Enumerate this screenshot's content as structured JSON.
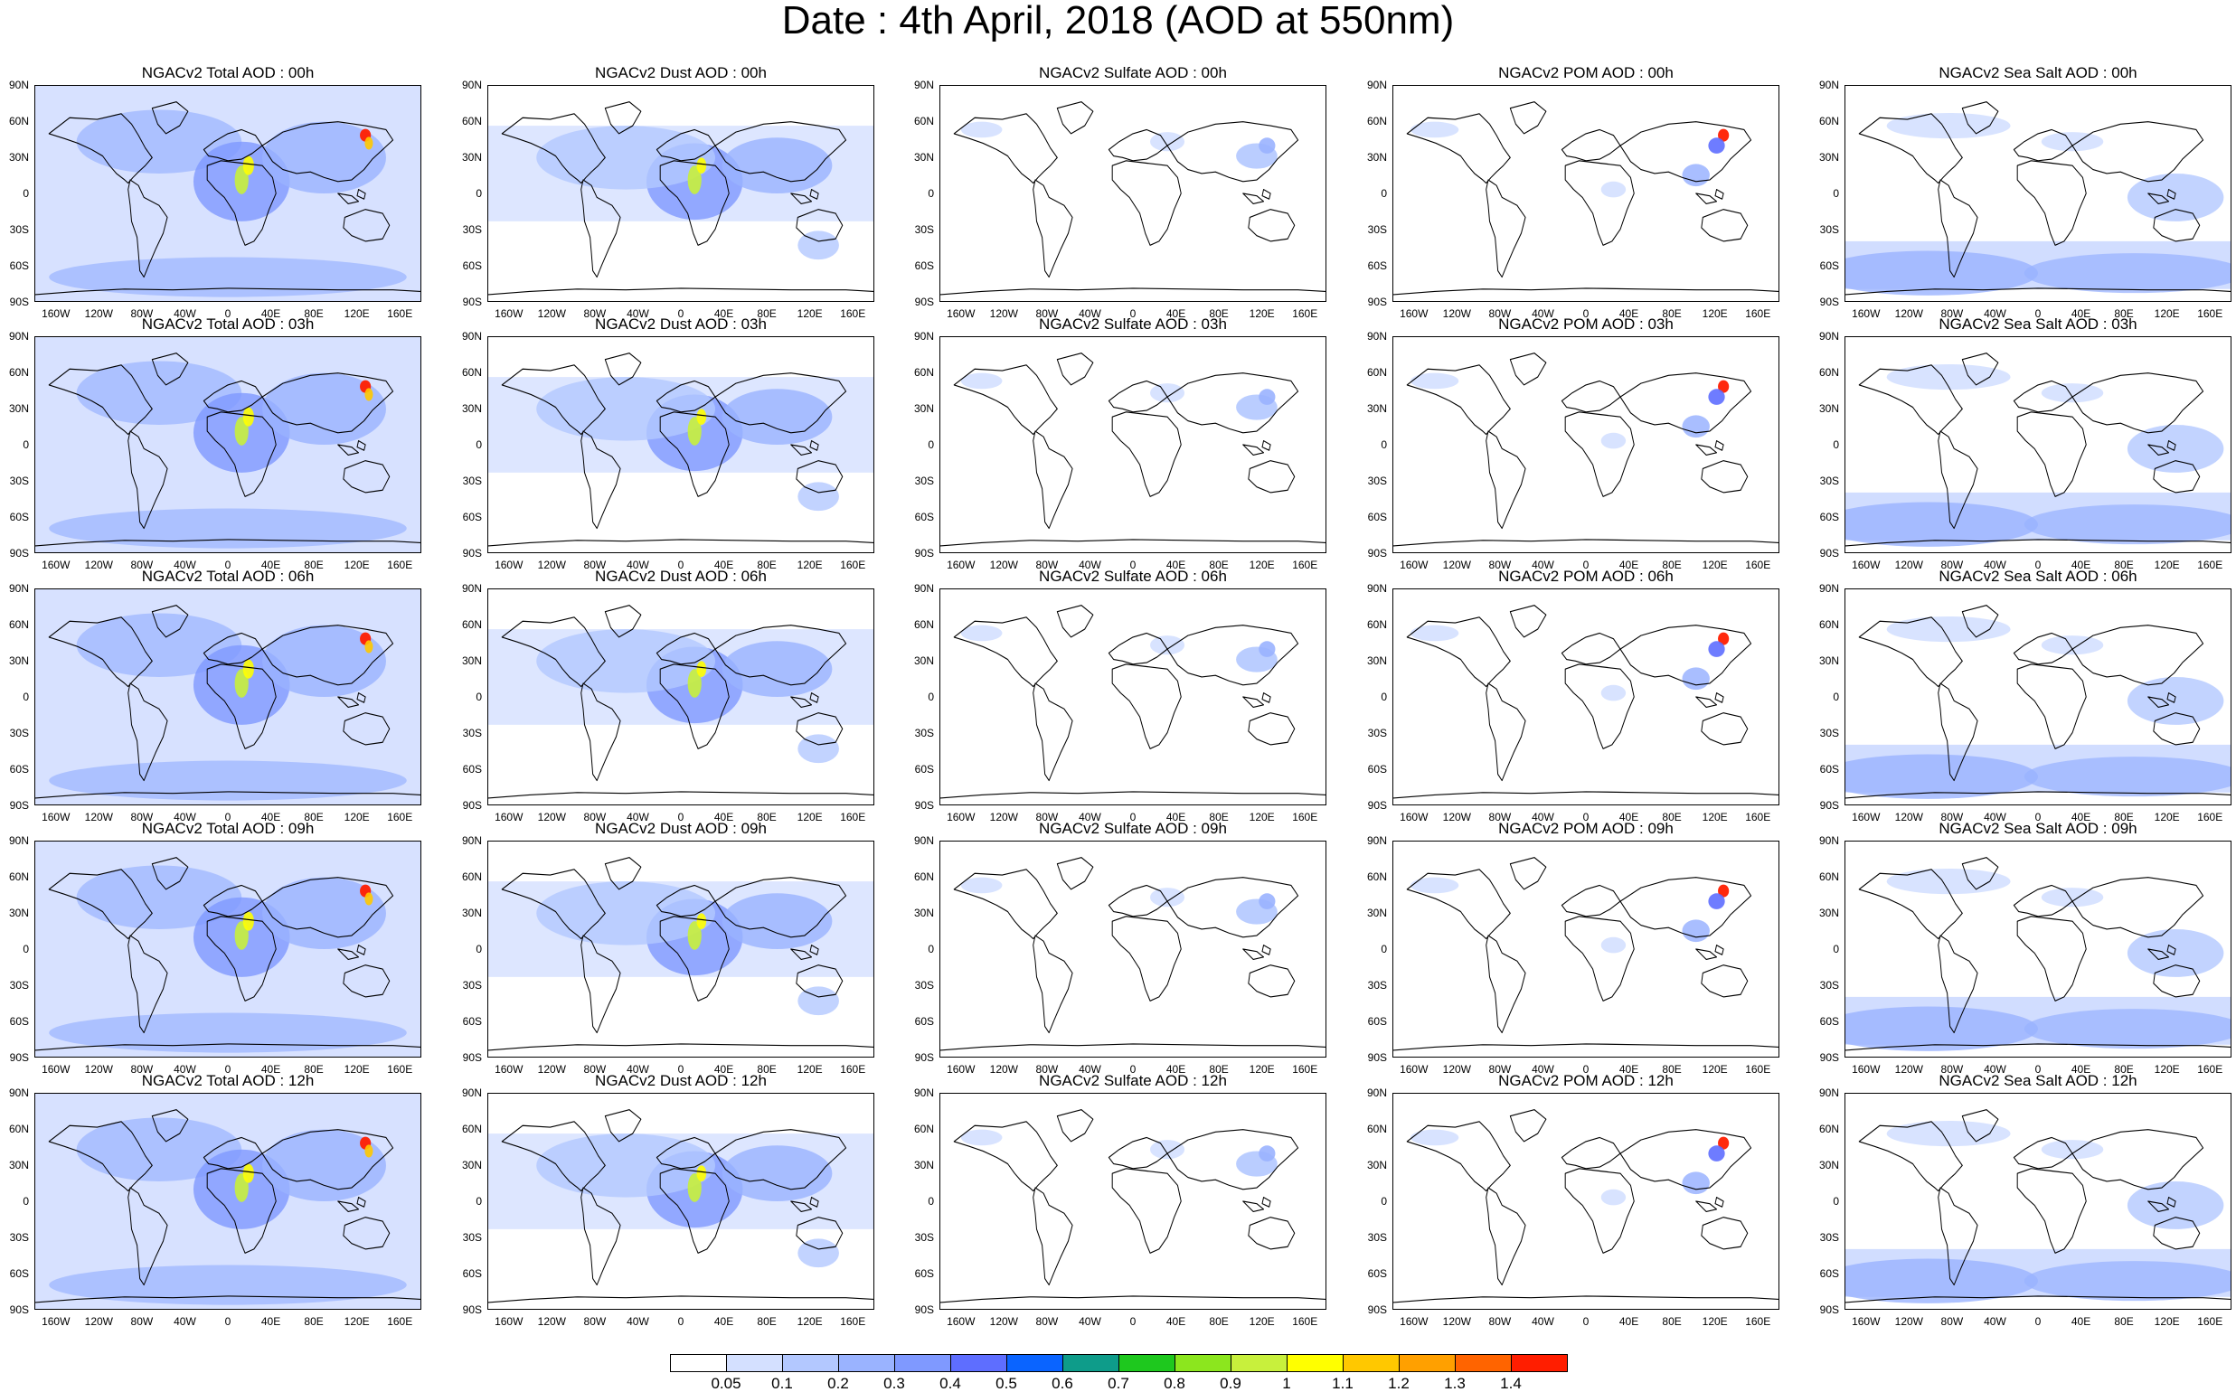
{
  "title": "Date : 4th April, 2018 (AOD at 550nm)",
  "panels": [
    [
      "NGACv2 Total AOD : 00h",
      "NGACv2 Dust AOD : 00h",
      "NGACv2 Sulfate AOD : 00h",
      "NGACv2 POM AOD : 00h",
      "NGACv2 Sea Salt AOD : 00h"
    ],
    [
      "NGACv2 Total AOD : 03h",
      "NGACv2 Dust AOD : 03h",
      "NGACv2 Sulfate AOD : 03h",
      "NGACv2 POM AOD : 03h",
      "NGACv2 Sea Salt AOD : 03h"
    ],
    [
      "NGACv2 Total AOD : 06h",
      "NGACv2 Dust AOD : 06h",
      "NGACv2 Sulfate AOD : 06h",
      "NGACv2 POM AOD : 06h",
      "NGACv2 Sea Salt AOD : 06h"
    ],
    [
      "NGACv2 Total AOD : 09h",
      "NGACv2 Dust AOD : 09h",
      "NGACv2 Sulfate AOD : 09h",
      "NGACv2 POM AOD : 09h",
      "NGACv2 Sea Salt  AOD : 09h"
    ],
    [
      "NGACv2 Total AOD  : 12h",
      "NGACv2 Dust AOD : 12h",
      "NGACv2 Sulfate AOD : 12h",
      "NGACv2 POM  AOD : 12h",
      "NGACv2 Sea Salt  AOD : 12h"
    ]
  ],
  "panel_kinds": [
    "total",
    "dust",
    "sulfate",
    "pom",
    "seasalt"
  ],
  "lat_labels": [
    "90N",
    "60N",
    "30N",
    "0",
    "30S",
    "60S",
    "90S"
  ],
  "lat_values": [
    90,
    60,
    30,
    0,
    -30,
    -60,
    -90
  ],
  "lon_labels": [
    "160W",
    "120W",
    "80W",
    "40W",
    "0",
    "40E",
    "80E",
    "120E",
    "160E"
  ],
  "lon_values": [
    -160,
    -120,
    -80,
    -40,
    0,
    40,
    80,
    120,
    160
  ],
  "colorbar": {
    "labels": [
      "0.05",
      "0.1",
      "0.2",
      "0.3",
      "0.4",
      "0.5",
      "0.6",
      "0.7",
      "0.8",
      "0.9",
      "1",
      "1.1",
      "1.2",
      "1.3",
      "1.4"
    ],
    "colors": [
      "#ffffff",
      "#d4e0ff",
      "#b3c8ff",
      "#9ab3ff",
      "#7f99ff",
      "#5e6eff",
      "#0a64ff",
      "#0e9c8a",
      "#1ec81e",
      "#8ce61e",
      "#c8f03c",
      "#ffff00",
      "#ffc800",
      "#ffa000",
      "#ff6400",
      "#ff1e00"
    ]
  }
}
